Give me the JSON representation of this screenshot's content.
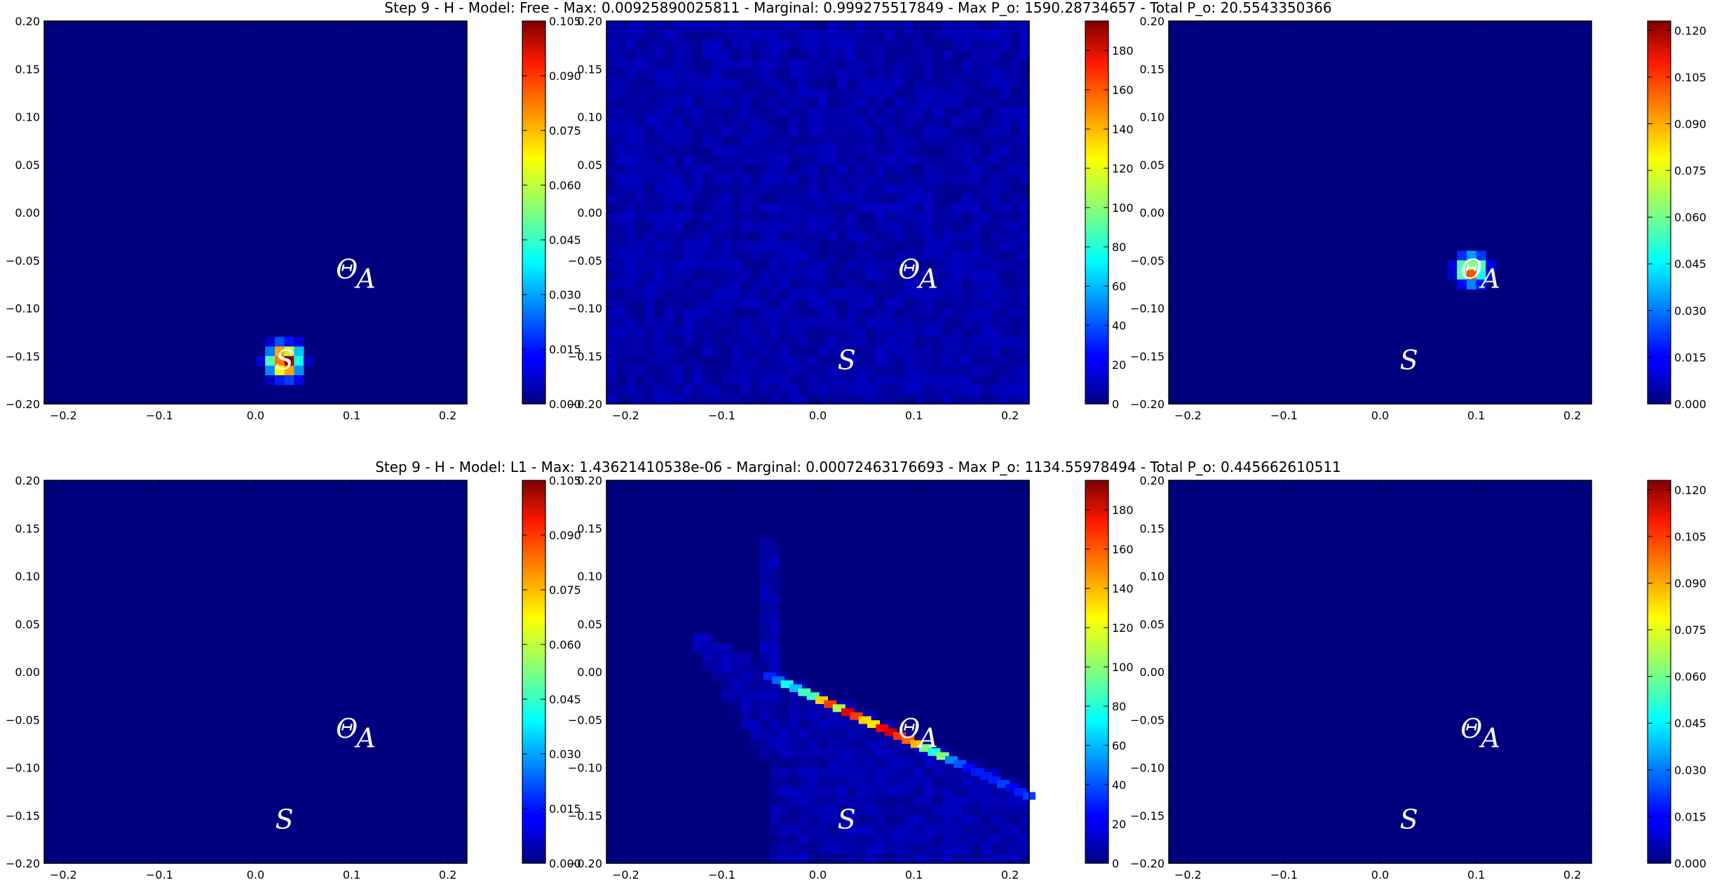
{
  "chart_data": [
    {
      "type": "heatmap",
      "title": "Step 9 - H - Model: Free - Max: 0.00925890025811 - Marginal: 0.999275517849 - Max P_o: 1590.28734657 - Total P_o: 20.5543350366",
      "xlim": [
        -0.22,
        0.22
      ],
      "ylim": [
        -0.2,
        0.2
      ],
      "xticks": [
        "−0.2",
        "−0.1",
        "0.0",
        "0.1",
        "0.2"
      ],
      "yticks": [
        "0.20",
        "0.15",
        "0.10",
        "0.05",
        "0.00",
        "−0.05",
        "−0.10",
        "−0.15",
        "−0.20"
      ],
      "colormap": "jet",
      "panels": [
        {
          "colorbar_ticks": [
            "0.000",
            "0.015",
            "0.030",
            "0.045",
            "0.060",
            "0.075",
            "0.090",
            "0.105"
          ],
          "clim": [
            0,
            0.105
          ],
          "features": [
            {
              "kind": "blob",
              "x": 0.03,
              "y": -0.155,
              "radius": 0.02,
              "peak": 0.1
            }
          ]
        },
        {
          "colorbar_ticks": [
            "0",
            "20",
            "40",
            "60",
            "80",
            "100",
            "120",
            "140",
            "160",
            "180"
          ],
          "clim": [
            0,
            195
          ],
          "features": [
            {
              "kind": "noise",
              "level": 10
            }
          ]
        },
        {
          "colorbar_ticks": [
            "0.000",
            "0.015",
            "0.030",
            "0.045",
            "0.060",
            "0.075",
            "0.090",
            "0.105",
            "0.120"
          ],
          "clim": [
            0,
            0.123
          ],
          "features": [
            {
              "kind": "blob",
              "x": 0.095,
              "y": -0.06,
              "radius": 0.018,
              "peak": 0.09
            }
          ]
        }
      ],
      "annotations": [
        {
          "text": "𝛩",
          "x": 0.095,
          "y": -0.06
        },
        {
          "text": "A",
          "x": 0.115,
          "y": -0.07
        },
        {
          "text": "S",
          "x": 0.03,
          "y": -0.155
        }
      ]
    },
    {
      "type": "heatmap",
      "title": "Step 9 - H - Model: L1 - Max: 1.43621410538e-06 - Marginal: 0.00072463176693 - Max P_o: 1134.55978494 - Total P_o: 0.445662610511",
      "xlim": [
        -0.22,
        0.22
      ],
      "ylim": [
        -0.2,
        0.2
      ],
      "xticks": [
        "−0.2",
        "−0.1",
        "0.0",
        "0.1",
        "0.2"
      ],
      "yticks": [
        "0.20",
        "0.15",
        "0.10",
        "0.05",
        "0.00",
        "−0.05",
        "−0.10",
        "−0.15",
        "−0.20"
      ],
      "colormap": "jet",
      "panels": [
        {
          "colorbar_ticks": [
            "0.000",
            "0.015",
            "0.030",
            "0.045",
            "0.060",
            "0.075",
            "0.090",
            "0.105"
          ],
          "clim": [
            0,
            0.105
          ],
          "features": []
        },
        {
          "colorbar_ticks": [
            "0",
            "20",
            "40",
            "60",
            "80",
            "100",
            "120",
            "140",
            "160",
            "180"
          ],
          "clim": [
            0,
            195
          ],
          "features": [
            {
              "kind": "noise-wedge",
              "level": 10
            },
            {
              "kind": "line",
              "from": [
                -0.05,
                -0.005
              ],
              "to": [
                0.22,
                -0.13
              ],
              "peak": 190
            }
          ]
        },
        {
          "colorbar_ticks": [
            "0.000",
            "0.015",
            "0.030",
            "0.045",
            "0.060",
            "0.075",
            "0.090",
            "0.105",
            "0.120"
          ],
          "clim": [
            0,
            0.123
          ],
          "features": []
        }
      ],
      "annotations": [
        {
          "text": "𝛩",
          "x": 0.095,
          "y": -0.06
        },
        {
          "text": "A",
          "x": 0.115,
          "y": -0.07
        },
        {
          "text": "S",
          "x": 0.03,
          "y": -0.155
        }
      ]
    }
  ]
}
